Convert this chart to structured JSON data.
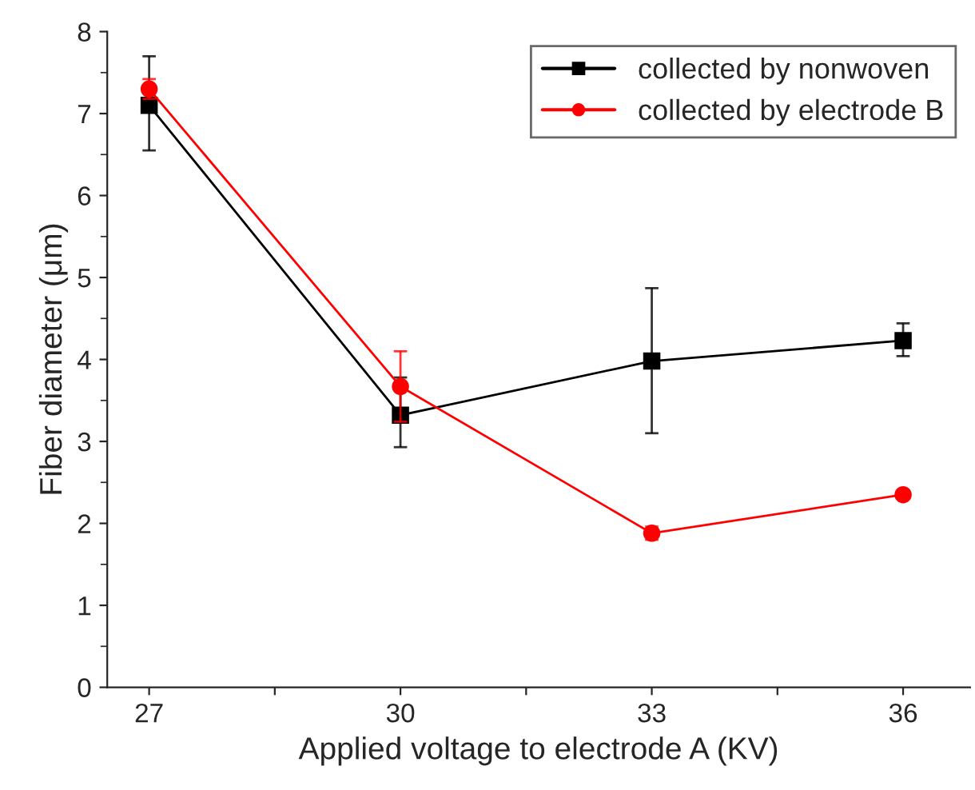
{
  "chart_data": {
    "type": "line",
    "xlabel": "Applied voltage to electrode A (KV)",
    "ylabel": "Fiber diameter (μm)",
    "x": [
      27,
      30,
      33,
      36
    ],
    "series": [
      {
        "name": "collected by nonwoven",
        "color": "#000000",
        "marker": "square",
        "values": [
          7.1,
          3.32,
          3.98,
          4.23
        ],
        "errors": [
          [
            6.55,
            7.7
          ],
          [
            2.93,
            3.78
          ],
          [
            3.1,
            4.87
          ],
          [
            4.04,
            4.44
          ]
        ]
      },
      {
        "name": "collected by electrode B",
        "color": "#ff0000",
        "marker": "circle",
        "values": [
          7.3,
          3.67,
          1.88,
          2.35
        ],
        "errors": [
          0.12,
          0.43,
          0.08,
          0.04
        ]
      }
    ],
    "xlim": [
      26.5,
      36.8
    ],
    "ylim": [
      0,
      8
    ],
    "xticks": [
      27,
      {
        "value": 28.5,
        "label": null
      },
      30,
      {
        "value": 31.5,
        "label": null
      },
      33,
      {
        "value": 34.5,
        "label": null
      },
      36
    ],
    "yticks": [
      0,
      1,
      2,
      3,
      4,
      5,
      6,
      7,
      8
    ],
    "grid": false,
    "legend": "top right",
    "line_style": "solid"
  }
}
